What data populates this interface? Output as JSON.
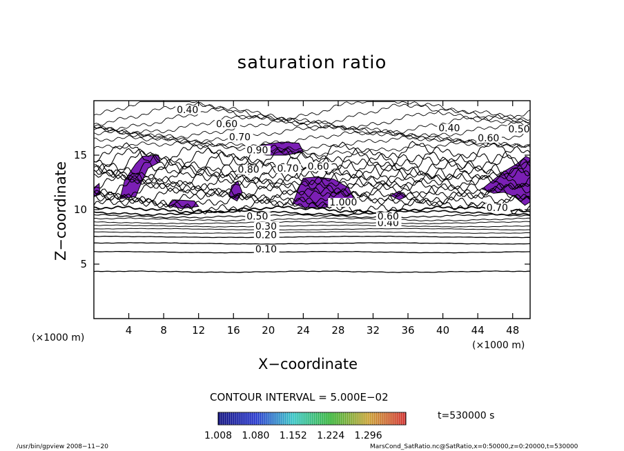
{
  "chart_data": {
    "type": "contour",
    "title": "saturation ratio",
    "xlabel": "X−coordinate",
    "ylabel": "Z−coordinate",
    "x_unit": "(×1000 m)",
    "y_unit": "(×1000 m)",
    "xlim": [
      0,
      50
    ],
    "ylim": [
      0,
      20
    ],
    "x_ticks": [
      "4",
      "8",
      "12",
      "16",
      "20",
      "24",
      "28",
      "32",
      "36",
      "40",
      "44",
      "48"
    ],
    "x_tick_values": [
      4,
      8,
      12,
      16,
      20,
      24,
      28,
      32,
      36,
      40,
      44,
      48
    ],
    "y_ticks": [
      "5",
      "10",
      "15"
    ],
    "y_tick_values": [
      5,
      10,
      15
    ],
    "contour_interval_text": "CONTOUR INTERVAL = 5.000E−02",
    "contour_labels": [
      {
        "text": "0.10",
        "x": 18.5,
        "z": 6.2
      },
      {
        "text": "0.20",
        "x": 18.5,
        "z": 7.5
      },
      {
        "text": "0.30",
        "x": 18.5,
        "z": 8.3
      },
      {
        "text": "0.50",
        "x": 17.5,
        "z": 9.2
      },
      {
        "text": "0.40",
        "x": 32.5,
        "z": 8.6
      },
      {
        "text": "0.60",
        "x": 32.5,
        "z": 9.2
      },
      {
        "text": "1.000",
        "x": 27.0,
        "z": 10.5
      },
      {
        "text": "0.80",
        "x": 16.5,
        "z": 13.5
      },
      {
        "text": "0.70",
        "x": 21.0,
        "z": 13.6
      },
      {
        "text": "0.60",
        "x": 24.5,
        "z": 13.8
      },
      {
        "text": "0.90",
        "x": 17.5,
        "z": 15.3
      },
      {
        "text": "0.70",
        "x": 15.5,
        "z": 16.5
      },
      {
        "text": "0.60",
        "x": 14.0,
        "z": 17.7
      },
      {
        "text": "0.40",
        "x": 9.5,
        "z": 19.0
      },
      {
        "text": "0.40",
        "x": 39.5,
        "z": 17.3
      },
      {
        "text": "0.60",
        "x": 44.0,
        "z": 16.4
      },
      {
        "text": "0.50",
        "x": 47.5,
        "z": 17.2
      },
      {
        "text": "0.70",
        "x": 45.0,
        "z": 10.0
      }
    ],
    "colorbar_labels": [
      "1.008",
      "1.080",
      "1.152",
      "1.224",
      "1.296"
    ],
    "colorbar_values": [
      1.008,
      1.08,
      1.152,
      1.224,
      1.296
    ],
    "time_label": "t=530000 s",
    "shaded_color": "#7b1fb5",
    "colors": [
      "#7b1fb5",
      "#1e2fcc",
      "#33c4c4",
      "#33b233",
      "#d12a2a"
    ]
  },
  "footer": {
    "left": "/usr/bin/gpview  2008−11−20",
    "right": "MarsCond_SatRatio.nc@SatRatio,x=0:50000,z=0:20000,t=530000"
  }
}
